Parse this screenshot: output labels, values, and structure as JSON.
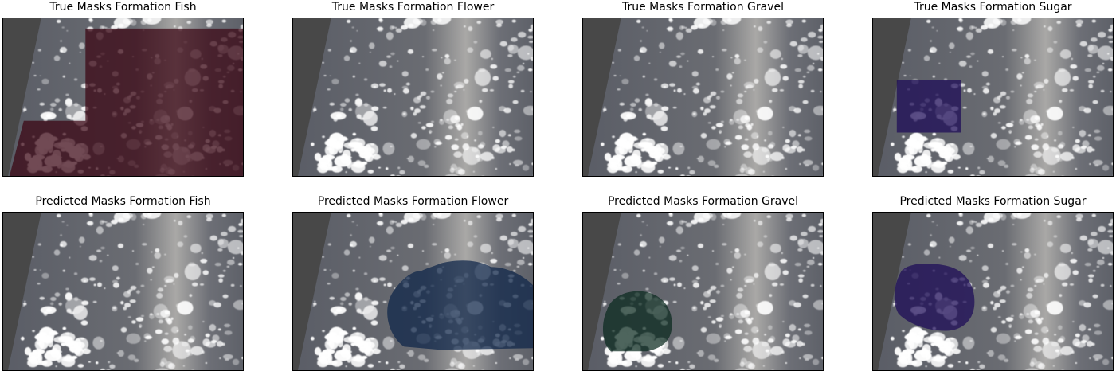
{
  "figure": {
    "panels": [
      {
        "id": "true-fish",
        "title": "True Masks Formation Fish",
        "mask": "fish",
        "mask_color": "#3a0412"
      },
      {
        "id": "true-flower",
        "title": "True Masks Formation Flower",
        "mask": "none"
      },
      {
        "id": "true-gravel",
        "title": "True Masks Formation Gravel",
        "mask": "none"
      },
      {
        "id": "true-sugar",
        "title": "True Masks Formation Sugar",
        "mask": "sugar-rect",
        "mask_color": "#1c0a58"
      },
      {
        "id": "pred-fish",
        "title": "Predicted Masks Formation Fish",
        "mask": "none"
      },
      {
        "id": "pred-flower",
        "title": "Predicted Masks Formation Flower",
        "mask": "flower-blob",
        "mask_color": "#0c2448"
      },
      {
        "id": "pred-gravel",
        "title": "Predicted Masks Formation Gravel",
        "mask": "gravel-blob",
        "mask_color": "#0a2a1e"
      },
      {
        "id": "pred-sugar",
        "title": "Predicted Masks Formation Sugar",
        "mask": "sugar-blob",
        "mask_color": "#1c0a58"
      }
    ]
  }
}
